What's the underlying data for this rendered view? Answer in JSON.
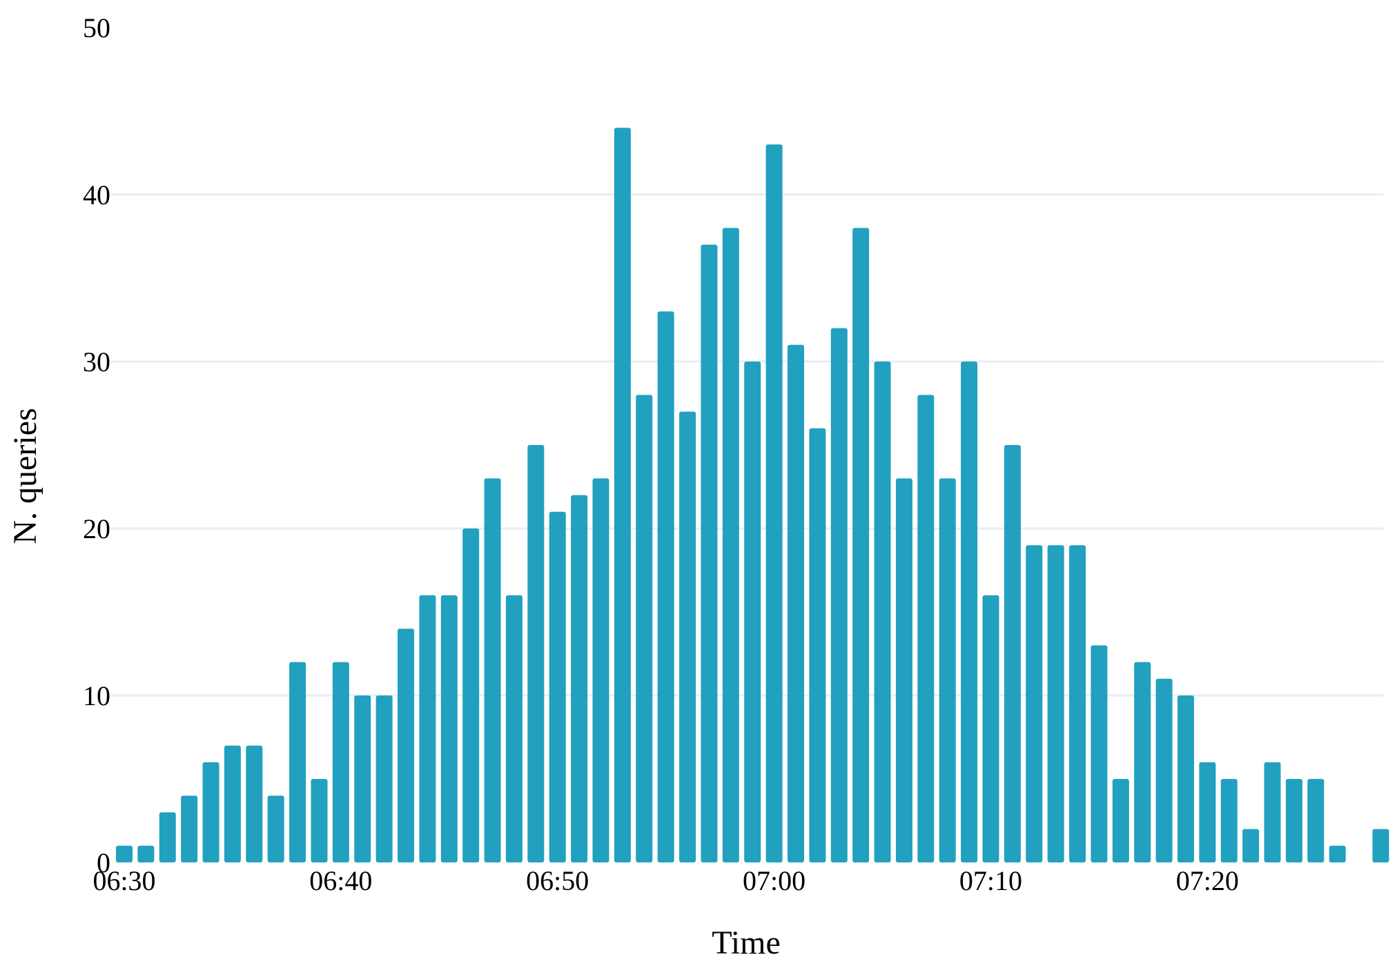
{
  "chart_data": {
    "type": "bar",
    "xlabel": "Time",
    "ylabel": "N. queries",
    "ylim": [
      0,
      50
    ],
    "yticks": [
      0,
      10,
      20,
      30,
      40,
      50
    ],
    "xticks": [
      "06:30",
      "06:40",
      "06:50",
      "07:00",
      "07:10",
      "07:20"
    ],
    "x_unit": "minute",
    "grid": "horizontal",
    "bar_color": "#22a0bf",
    "grid_color": "#e6eef7",
    "categories": [
      "06:30",
      "06:31",
      "06:32",
      "06:33",
      "06:34",
      "06:35",
      "06:36",
      "06:37",
      "06:38",
      "06:39",
      "06:40",
      "06:41",
      "06:42",
      "06:43",
      "06:44",
      "06:45",
      "06:46",
      "06:47",
      "06:48",
      "06:49",
      "06:50",
      "06:51",
      "06:52",
      "06:53",
      "06:54",
      "06:55",
      "06:56",
      "06:57",
      "06:58",
      "06:59",
      "07:00",
      "07:01",
      "07:02",
      "07:03",
      "07:04",
      "07:05",
      "07:06",
      "07:07",
      "07:08",
      "07:09",
      "07:10",
      "07:11",
      "07:12",
      "07:13",
      "07:14",
      "07:15",
      "07:16",
      "07:17",
      "07:18",
      "07:19",
      "07:20",
      "07:21",
      "07:22",
      "07:23",
      "07:24",
      "07:25",
      "07:26",
      "07:27",
      "07:28"
    ],
    "values": [
      1,
      1,
      3,
      4,
      6,
      7,
      7,
      4,
      12,
      5,
      12,
      10,
      10,
      14,
      16,
      16,
      20,
      23,
      16,
      25,
      21,
      22,
      23,
      44,
      28,
      33,
      27,
      37,
      38,
      30,
      43,
      31,
      26,
      32,
      38,
      30,
      23,
      28,
      23,
      30,
      16,
      25,
      19,
      19,
      19,
      13,
      5,
      12,
      11,
      10,
      6,
      5,
      2,
      6,
      5,
      5,
      1,
      0,
      2
    ]
  }
}
